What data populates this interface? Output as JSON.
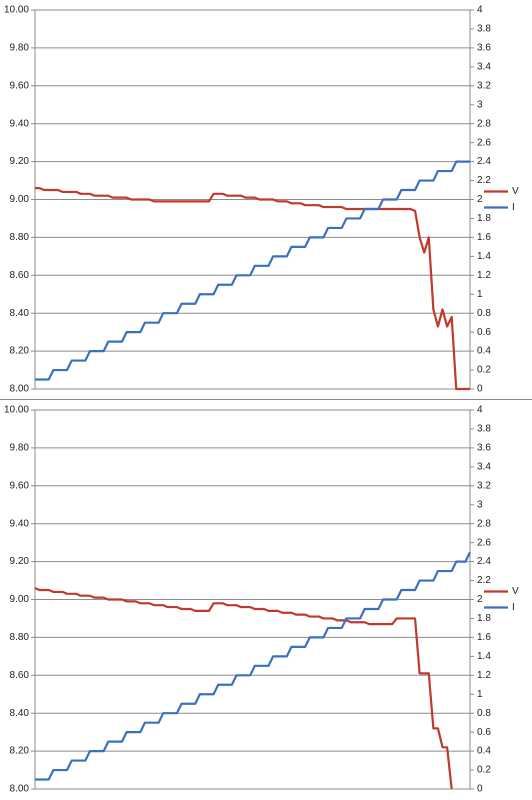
{
  "chart_data": [
    {
      "type": "line",
      "legend": "right",
      "grid": true,
      "ylim": [
        8,
        10
      ],
      "yticks": [
        {
          "value": 8,
          "label": "8.00"
        },
        {
          "value": 8.2,
          "label": "8.20"
        },
        {
          "value": 8.4,
          "label": "8.40"
        },
        {
          "value": 8.6,
          "label": "8.60"
        },
        {
          "value": 8.8,
          "label": "8.80"
        },
        {
          "value": 9,
          "label": "9.00"
        },
        {
          "value": 9.2,
          "label": "9.20"
        },
        {
          "value": 9.4,
          "label": "9.40"
        },
        {
          "value": 9.6,
          "label": "9.60"
        },
        {
          "value": 9.8,
          "label": "9.80"
        },
        {
          "value": 10,
          "label": "10.00"
        }
      ],
      "y2lim": [
        0,
        4
      ],
      "y2ticks": [
        0,
        0.2,
        0.4,
        0.6,
        0.8,
        1,
        1.2,
        1.4,
        1.6,
        1.8,
        2,
        2.2,
        2.4,
        2.6,
        2.8,
        3,
        3.2,
        3.4,
        3.6,
        3.8,
        4
      ],
      "series": [
        {
          "name": "V",
          "color": "#c0392b",
          "values": [
            9.06,
            9.06,
            9.05,
            9.05,
            9.05,
            9.05,
            9.04,
            9.04,
            9.04,
            9.04,
            9.03,
            9.03,
            9.03,
            9.02,
            9.02,
            9.02,
            9.02,
            9.01,
            9.01,
            9.01,
            9.01,
            9,
            9,
            9,
            9,
            9,
            8.99,
            8.99,
            8.99,
            8.99,
            8.99,
            8.99,
            8.99,
            8.99,
            8.99,
            8.99,
            8.99,
            8.99,
            8.99,
            9.03,
            9.03,
            9.03,
            9.02,
            9.02,
            9.02,
            9.02,
            9.01,
            9.01,
            9.01,
            9,
            9,
            9,
            9,
            8.99,
            8.99,
            8.99,
            8.98,
            8.98,
            8.98,
            8.97,
            8.97,
            8.97,
            8.97,
            8.96,
            8.96,
            8.96,
            8.96,
            8.96,
            8.95,
            8.95,
            8.95,
            8.95,
            8.95,
            8.95,
            8.95,
            8.95,
            8.95,
            8.95,
            8.95,
            8.95,
            8.95,
            8.95,
            8.95,
            8.94,
            8.8,
            8.72,
            8.8,
            8.42,
            8.33,
            8.42,
            8.33,
            8.38,
            8,
            8,
            8,
            8
          ]
        },
        {
          "name": "I",
          "color": "#3a6fc4",
          "axis": "y2",
          "values": [
            0.1,
            0.1,
            0.1,
            0.1,
            0.2,
            0.2,
            0.2,
            0.2,
            0.3,
            0.3,
            0.3,
            0.3,
            0.4,
            0.4,
            0.4,
            0.4,
            0.5,
            0.5,
            0.5,
            0.5,
            0.6,
            0.6,
            0.6,
            0.6,
            0.7,
            0.7,
            0.7,
            0.7,
            0.8,
            0.8,
            0.8,
            0.8,
            0.9,
            0.9,
            0.9,
            0.9,
            1,
            1,
            1,
            1,
            1.1,
            1.1,
            1.1,
            1.1,
            1.2,
            1.2,
            1.2,
            1.2,
            1.3,
            1.3,
            1.3,
            1.3,
            1.4,
            1.4,
            1.4,
            1.4,
            1.5,
            1.5,
            1.5,
            1.5,
            1.6,
            1.6,
            1.6,
            1.6,
            1.7,
            1.7,
            1.7,
            1.7,
            1.8,
            1.8,
            1.8,
            1.8,
            1.9,
            1.9,
            1.9,
            1.9,
            2,
            2,
            2,
            2,
            2.1,
            2.1,
            2.1,
            2.1,
            2.2,
            2.2,
            2.2,
            2.2,
            2.3,
            2.3,
            2.3,
            2.3,
            2.4,
            2.4,
            2.4,
            2.4
          ]
        }
      ]
    },
    {
      "type": "line",
      "legend": "right",
      "grid": true,
      "ylim": [
        8,
        10
      ],
      "yticks": [
        {
          "value": 8,
          "label": "8.00"
        },
        {
          "value": 8.2,
          "label": "8.20"
        },
        {
          "value": 8.4,
          "label": "8.40"
        },
        {
          "value": 8.6,
          "label": "8.60"
        },
        {
          "value": 8.8,
          "label": "8.80"
        },
        {
          "value": 9,
          "label": "9.00"
        },
        {
          "value": 9.2,
          "label": "9.20"
        },
        {
          "value": 9.4,
          "label": "9.40"
        },
        {
          "value": 9.6,
          "label": "9.60"
        },
        {
          "value": 9.8,
          "label": "9.80"
        },
        {
          "value": 10,
          "label": "10.00"
        }
      ],
      "y2lim": [
        0,
        4
      ],
      "y2ticks": [
        0,
        0.2,
        0.4,
        0.6,
        0.8,
        1,
        1.2,
        1.4,
        1.6,
        1.8,
        2,
        2.2,
        2.4,
        2.6,
        2.8,
        3,
        3.2,
        3.4,
        3.6,
        3.8,
        4
      ],
      "series": [
        {
          "name": "V",
          "color": "#c0392b",
          "values": [
            9.06,
            9.05,
            9.05,
            9.05,
            9.04,
            9.04,
            9.04,
            9.03,
            9.03,
            9.03,
            9.02,
            9.02,
            9.02,
            9.01,
            9.01,
            9.01,
            9,
            9,
            9,
            9,
            8.99,
            8.99,
            8.99,
            8.98,
            8.98,
            8.98,
            8.97,
            8.97,
            8.97,
            8.96,
            8.96,
            8.96,
            8.95,
            8.95,
            8.95,
            8.94,
            8.94,
            8.94,
            8.94,
            8.98,
            8.98,
            8.98,
            8.97,
            8.97,
            8.97,
            8.96,
            8.96,
            8.96,
            8.95,
            8.95,
            8.95,
            8.94,
            8.94,
            8.94,
            8.93,
            8.93,
            8.93,
            8.92,
            8.92,
            8.92,
            8.91,
            8.91,
            8.91,
            8.9,
            8.9,
            8.9,
            8.89,
            8.89,
            8.89,
            8.88,
            8.88,
            8.88,
            8.88,
            8.87,
            8.87,
            8.87,
            8.87,
            8.87,
            8.87,
            8.9,
            8.9,
            8.9,
            8.9,
            8.9,
            8.61,
            8.61,
            8.61,
            8.32,
            8.32,
            8.22,
            8.22,
            8,
            null,
            null,
            null,
            null
          ]
        },
        {
          "name": "I",
          "color": "#3a6fc4",
          "axis": "y2",
          "values": [
            0.1,
            0.1,
            0.1,
            0.1,
            0.2,
            0.2,
            0.2,
            0.2,
            0.3,
            0.3,
            0.3,
            0.3,
            0.4,
            0.4,
            0.4,
            0.4,
            0.5,
            0.5,
            0.5,
            0.5,
            0.6,
            0.6,
            0.6,
            0.6,
            0.7,
            0.7,
            0.7,
            0.7,
            0.8,
            0.8,
            0.8,
            0.8,
            0.9,
            0.9,
            0.9,
            0.9,
            1,
            1,
            1,
            1,
            1.1,
            1.1,
            1.1,
            1.1,
            1.2,
            1.2,
            1.2,
            1.2,
            1.3,
            1.3,
            1.3,
            1.3,
            1.4,
            1.4,
            1.4,
            1.4,
            1.5,
            1.5,
            1.5,
            1.5,
            1.6,
            1.6,
            1.6,
            1.6,
            1.7,
            1.7,
            1.7,
            1.7,
            1.8,
            1.8,
            1.8,
            1.8,
            1.9,
            1.9,
            1.9,
            1.9,
            2,
            2,
            2,
            2,
            2.1,
            2.1,
            2.1,
            2.1,
            2.2,
            2.2,
            2.2,
            2.2,
            2.3,
            2.3,
            2.3,
            2.3,
            2.4,
            2.4,
            2.4,
            2.5
          ]
        }
      ]
    }
  ]
}
